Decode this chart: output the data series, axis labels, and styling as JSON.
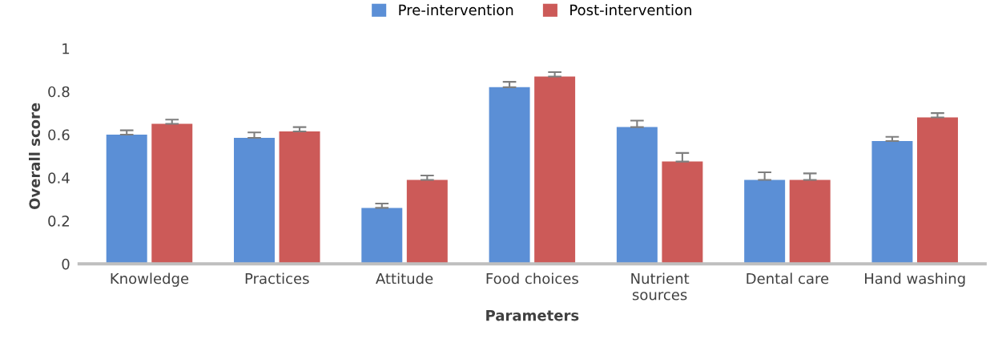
{
  "chart_data": {
    "type": "bar",
    "xlabel": "Parameters",
    "ylabel": "Overall score",
    "categories": [
      "Knowledge",
      "Practices",
      "Attitude",
      "Food choices",
      "Nutrient\nsources",
      "Dental care",
      "Hand washing"
    ],
    "series": [
      {
        "name": "Pre-intervention",
        "color": "#5b8fd6",
        "values": [
          0.6,
          0.585,
          0.26,
          0.82,
          0.635,
          0.39,
          0.57
        ],
        "errors": [
          [
            0.6,
            0.62
          ],
          [
            0.585,
            0.61
          ],
          [
            0.26,
            0.28
          ],
          [
            0.82,
            0.845
          ],
          [
            0.635,
            0.665
          ],
          [
            0.39,
            0.425
          ],
          [
            0.57,
            0.59
          ]
        ]
      },
      {
        "name": "Post-intervention",
        "color": "#cc5a58",
        "values": [
          0.65,
          0.615,
          0.39,
          0.87,
          0.475,
          0.39,
          0.68
        ],
        "errors": [
          [
            0.65,
            0.67
          ],
          [
            0.615,
            0.635
          ],
          [
            0.39,
            0.41
          ],
          [
            0.87,
            0.89
          ],
          [
            0.475,
            0.515
          ],
          [
            0.39,
            0.42
          ],
          [
            0.68,
            0.7
          ]
        ]
      }
    ],
    "ylim": [
      0,
      1
    ],
    "yticks": [
      0,
      0.2,
      0.4,
      0.6,
      0.8,
      1
    ],
    "grid": false,
    "legend": "top"
  }
}
